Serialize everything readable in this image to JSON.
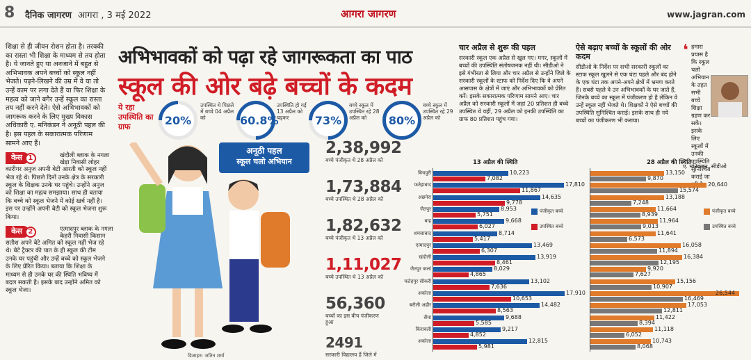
{
  "masthead": {
    "page_num": "8",
    "paper": "दैनिक जागरण",
    "date": "आगरा , 3 मई 2022",
    "edition": "आगरा जागरण",
    "site": "www.jagran.com"
  },
  "left": {
    "intro": "शिक्षा से ही जीवन रोशन होता है। तरक्की का रास्ता भी शिक्षा के माध्यम से तय होता है। ये जानते हुए या अनजाने में बहुत से अभिभावक अपने बच्चों को स्कूल नहीं भेजते। पढ़ने-लिखने की उम्र में वे या तो उन्हें काम पर लगा देते हैं या फिर शिक्षा के महत्व को जाने बगैर उन्हें स्कूल का रास्ता तय नहीं करने देते। ऐसे अभिभावकों को जागरूक करने के लिए मुख्य विकास अधिकारी ए. मनिकंडन ने अनूठी पहल की है। इस पहल के सकारात्मक परिणाम सामने आए हैं।",
    "case1": {
      "badge": "केस",
      "num": "1",
      "sub": "खंदौली ब्लाक के नगला खेड़ा निवासी लोहर",
      "body": "कारीगर अनुज अपनी बेटी आरती को स्कूल नहीं भेज रहे थे। पिछले दिनों उनके क्षेत्र के सरकारी स्कूल के शिक्षक उनके घर पहुंचे। उन्होंने अनुज को शिक्षा का महत्व समझाया। साथ ही बताया कि बच्चे को स्कूल भेजने में कोई खर्च नहीं है। इस पर उन्होंने अपनी बेटी को स्कूल भेजना शुरू किया।"
    },
    "case2": {
      "badge": "केस",
      "num": "2",
      "sub": "एत्मादपुर ब्लाक के नगला केहरी निवासी किसान",
      "body": "सतीश अपने बेटे अमित को स्कूल नहीं भेज रहे थे। बेटे ट्रैक्टर की पात के ही स्कूल की टीम उनके घर पहुंची और उन्हें बच्चे को स्कूल भेजने के लिए प्रेरित किया। बताया कि शिक्षा के माध्यम से ही उनके घर की स्थिति भविष्य में बदल सकती है। इसके बाद उन्होंने अमित को स्कूल भेजा।"
    }
  },
  "headline": {
    "line1": "अभिभावकों को पढ़ा रहे जागरूकता का पाठ",
    "line2": "स्कूल की ओर बढ़े बच्चों के कदम",
    "present_label": "ये रहा उपस्थिति का ग्राफ"
  },
  "attendance": [
    {
      "value": "20%",
      "pct": 20,
      "note": "उपस्थित थे पिछले में बच्चे 04 अप्रैल को"
    },
    {
      "value": "60.8%",
      "pct": 60.8,
      "note": "उपस्थिति हो गई 13 अप्रैल को बढ़कर"
    },
    {
      "value": "73%",
      "pct": 73,
      "note": "बच्चे स्कूल में उपस्थित रहे 28 अप्रैल को"
    },
    {
      "value": "80%",
      "pct": 80,
      "note": "बच्चे स्कूल में उपस्थित रहे 29 अप्रैल को"
    }
  ],
  "banner": {
    "title": "अनूठी पहल",
    "subtitle": "स्कूल चलो अभियान"
  },
  "illustration_credit": "डिजाइन: जतिन शर्मा",
  "stats": [
    {
      "num": "2,38,992",
      "label": "बच्चे पंजीकृत थे 28 अप्रैल को",
      "red": false
    },
    {
      "num": "1,73,884",
      "label": "बच्चे उपस्थित थे 28 अप्रैल को",
      "red": false
    },
    {
      "num": "1,82,632",
      "label": "बच्चे पंजीकृत थे 13 अप्रैल को",
      "red": false
    },
    {
      "num": "1,11,027",
      "label": "बच्चे उपस्थित थे 13 अप्रैल को",
      "red": true
    },
    {
      "num": "56,360",
      "label": "बच्चों का इस बीच पंजीकरण हुआ",
      "red": false
    },
    {
      "num": "2491",
      "label": "सरकारी विद्यालय हैं जिले में",
      "red": false
    }
  ],
  "articles": {
    "a1": {
      "title": "चार अप्रैल से शुरू की पहल",
      "body": "सरकारी स्कूल एक अप्रैल से खुल गए। मगर, स्कूलों में बच्चों की उपस्थिति संतोषजनक नहीं थी। सीडीओ ने इसे गंभीरता से लिया और चार अप्रैल से उन्होंने जिले के सरकारी स्कूलों के स्टाफ को निर्देश दिए कि वे अपने आसपास के क्षेत्रों में जाएं और अभिभावकों को प्रेरित करें। इसके सकारात्मक परिणाम सामने आए। चार अप्रैल को सरकारी स्कूलों में जहां 20 प्रतिशत ही बच्चे उपस्थित थे वहीं, 29 अप्रैल को इनकी उपस्थिति का ग्राफ 80 प्रतिशत पहुंच गया।"
    },
    "a2": {
      "title": "ऐसे बढ़ाए बच्चों के स्कूलों की ओर कदम",
      "body": "सीडीओ के निर्देश पर सभी सरकारी स्कूलों का स्टाफ स्कूल खुलने से एक घंटा पहले और बंद होने के एक घंटा तक अपने-अपने क्षेत्रों में भ्रमण करते हैं। सबसे पहले वे उन अभिभावकों के घर जाते हैं, जिनके बच्चे का स्कूल में पंजीकरण हो है लेकिन वे उन्हें स्कूल नहीं भेजते थे। शिक्षकों ने ऐसे बच्चों की उपस्थिति सुनिश्चित कराई। इसके साथ ही नये बच्चों का पंजीकरण भी कराया।"
    },
    "a3": {
      "body": "हमारा प्रयास है कि स्कूल चलो अभियान के तहत सभी बच्चे शिक्षा ग्रहण कर सकें। इसके लिए स्कूलों में उनकी उपस्थिति सुनिश्चित कराई जा रही है।",
      "author": "ए. मनिकंडन, सीडीओ"
    }
  },
  "chart_data": [
    {
      "type": "bar",
      "title": "13 अप्रैल की स्थिति",
      "categories": [
        "बिचपुरी",
        "फतेहाबाद",
        "अछनेरा",
        "जैतपुर",
        "बाह",
        "शमसाबाद",
        "एत्मादपुर",
        "खंदौली",
        "जैतपुर कलां",
        "फतेहपुर सीकरी",
        "अकोला",
        "बरौली अहीर",
        "सैंया",
        "किरावली",
        "अकोला"
      ],
      "series": [
        {
          "name": "पंजीकृत बच्चे",
          "color": "#1d5aa6",
          "values": [
            10223,
            17810,
            14635,
            8953,
            9668,
            8714,
            13469,
            13919,
            8029,
            13102,
            17910,
            14482,
            9688,
            9217,
            12815
          ]
        },
        {
          "name": "उपस्थित बच्चे",
          "color": "#d01c26",
          "values": [
            7082,
            11867,
            9778,
            5751,
            6027,
            5417,
            6307,
            8461,
            4865,
            7636,
            10653,
            8563,
            5585,
            4852,
            5981
          ]
        }
      ]
    },
    {
      "type": "bar",
      "title": "28 अप्रैल की स्थिति",
      "categories": [
        "बिचपुरी",
        "फतेहाबाद",
        "अछनेरा",
        "जैतपुर",
        "बाह",
        "शमसाबाद",
        "एत्मादपुर",
        "खंदौली",
        "जैतपुर कलां",
        "फतेहपुर सीकरी",
        "अकोला",
        "बरौली अहीर",
        "सैंया",
        "किरावली",
        "अकोला"
      ],
      "series": [
        {
          "name": "पंजीकृत बच्चे",
          "color": "#e07b2c",
          "values": [
            13150,
            20640,
            13188,
            11664,
            11964,
            11641,
            16058,
            16384,
            9920,
            15156,
            26544,
            17053,
            11422,
            11118,
            10743
          ]
        },
        {
          "name": "उपस्थित बच्चे",
          "color": "#777777",
          "values": [
            9870,
            15574,
            7248,
            8939,
            9013,
            6573,
            11894,
            12195,
            7627,
            10907,
            16469,
            12811,
            8394,
            6052,
            8068
          ]
        }
      ]
    }
  ]
}
